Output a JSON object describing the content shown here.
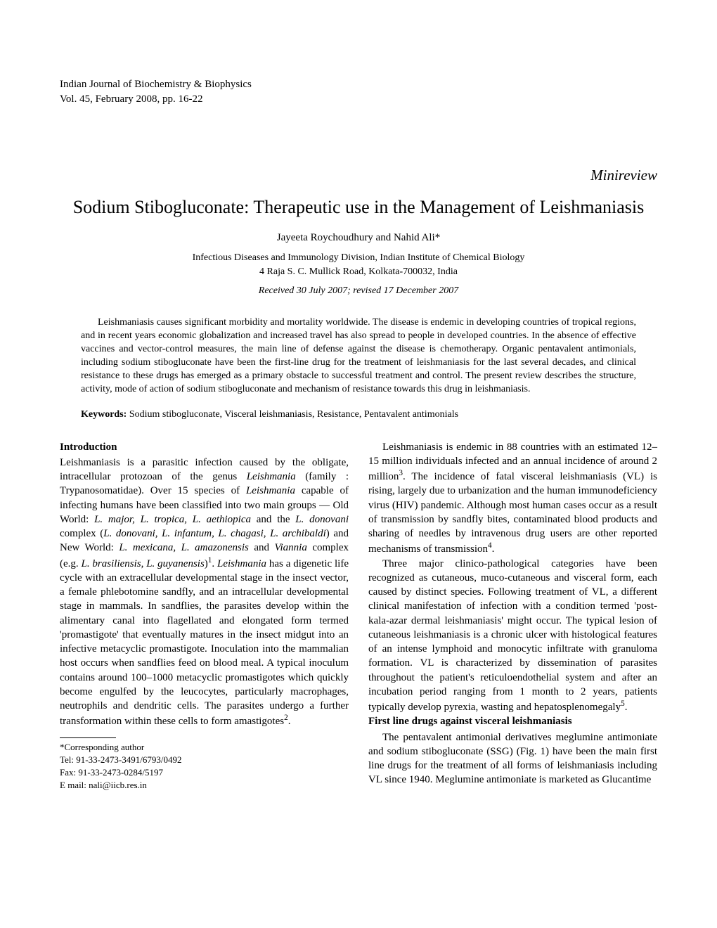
{
  "journal": {
    "name": "Indian Journal of Biochemistry & Biophysics",
    "vol_line": "Vol. 45, February 2008, pp. 16-22"
  },
  "article_type": "Minireview",
  "title": "Sodium Stibogluconate: Therapeutic use in the Management of Leishmaniasis",
  "authors": "Jayeeta Roychoudhury and Nahid Ali*",
  "affiliation_line1": "Infectious Diseases and Immunology Division, Indian Institute of Chemical Biology",
  "affiliation_line2": "4 Raja S. C. Mullick Road, Kolkata-700032, India",
  "dates": "Received 30 July 2007; revised 17 December 2007",
  "abstract": "Leishmaniasis causes significant morbidity and mortality worldwide. The disease is endemic in developing countries of tropical regions, and in recent years economic globalization and increased travel has also spread to people in developed countries. In the absence of effective vaccines and vector-control measures, the main line of defense against the disease is chemotherapy. Organic pentavalent antimonials, including sodium stibogluconate have been the first-line drug for the treatment of leishmaniasis for the last several decades, and clinical resistance to these drugs has emerged as a primary obstacle to successful treatment and control. The present review describes the structure, activity, mode of action of sodium stibogluconate and mechanism of resistance towards this drug in leishmaniasis.",
  "keywords_label": "Keywords:",
  "keywords": " Sodium stibogluconate, Visceral leishmaniasis, Resistance, Pentavalent antimonials",
  "left_col": {
    "intro_heading": "Introduction",
    "p1a": "Leishmaniasis is a parasitic infection caused by the obligate, intracellular protozoan of the genus ",
    "p1b": "Leishmania",
    "p1c": " (family : Trypanosomatidae). Over 15 species of ",
    "p1d": "Leishmania",
    "p1e": " capable of infecting humans have been classified into two main groups — Old World: ",
    "p1f": "L. major, L. tropica, L. aethiopica",
    "p1g": " and the ",
    "p1h": "L. donovani",
    "p1i": " complex (",
    "p1j": "L. donovani, L. infantum, L. chagasi, L. archibaldi",
    "p1k": ") and New World: ",
    "p1l": "L. mexicana, L. amazonensis",
    "p1m": " and ",
    "p1n": "Viannia",
    "p1o": " complex (e.g. ",
    "p1p": "L. brasiliensis, L. guyanensis",
    "p1q": ")",
    "p1r": "1",
    "p1s": ". ",
    "p1t": "Leishmania",
    "p1u": " has a digenetic life cycle with an extracellular developmental stage in the insect vector, a female phlebotomine sandfly, and an intracellular developmental stage in mammals. In sandflies, the parasites develop within the alimentary canal into flagellated and elongated form termed 'promastigote' that eventually matures in the insect midgut into an infective metacyclic promastigote. Inoculation into the mammalian host occurs when sandflies feed on blood meal. A typical inoculum contains around 100–1000 metacyclic promastigotes which quickly become engulfed by the leucocytes, particularly macrophages, neutrophils and dendritic cells. The parasites undergo a further transformation within these cells to form amastigotes",
    "p1v": "2",
    "p1w": "."
  },
  "right_col": {
    "p1a": "Leishmaniasis is endemic in 88 countries with an estimated 12–15 million individuals infected and an annual incidence of around 2 million",
    "p1b": "3",
    "p1c": ". The incidence of fatal visceral leishmaniasis (VL) is rising, largely due to urbanization and the human immunodeficiency virus (HIV) pandemic. Although most human cases occur as a result of transmission by sandfly bites, contaminated blood products and sharing of needles by intravenous drug users are other reported mechanisms of transmission",
    "p1d": "4",
    "p1e": ".",
    "p2a": "Three major clinico-pathological categories have been recognized as cutaneous, muco-cutaneous and visceral form, each caused by distinct species. Following treatment of VL, a different clinical manifestation of infection with a condition termed 'post-kala-azar dermal leishmaniasis' might occur. The typical lesion of cutaneous leishmaniasis is a chronic ulcer with histological features of an intense lymphoid and monocytic infiltrate with granuloma formation. VL is characterized by dissemination of parasites throughout the patient's reticuloendothelial system and after an incubation period ranging from 1 month to 2 years, patients typically develop pyrexia, wasting and hepatosplenomegaly",
    "p2b": "5",
    "p2c": ".",
    "sec2_heading": "First line drugs against visceral leishmaniasis",
    "p3": "The pentavalent antimonial derivatives meglumine antimoniate and sodium stibogluconate (SSG) (Fig. 1) have been the main first line drugs for the treatment of all forms of leishmaniasis including VL since 1940. Meglumine antimoniate is marketed as Glucantime"
  },
  "footnote": {
    "l1": "*Corresponding author",
    "l2": "Tel: 91-33-2473-3491/6793/0492",
    "l3": "Fax: 91-33-2473-0284/5197",
    "l4": "E mail: nali@iicb.res.in"
  }
}
